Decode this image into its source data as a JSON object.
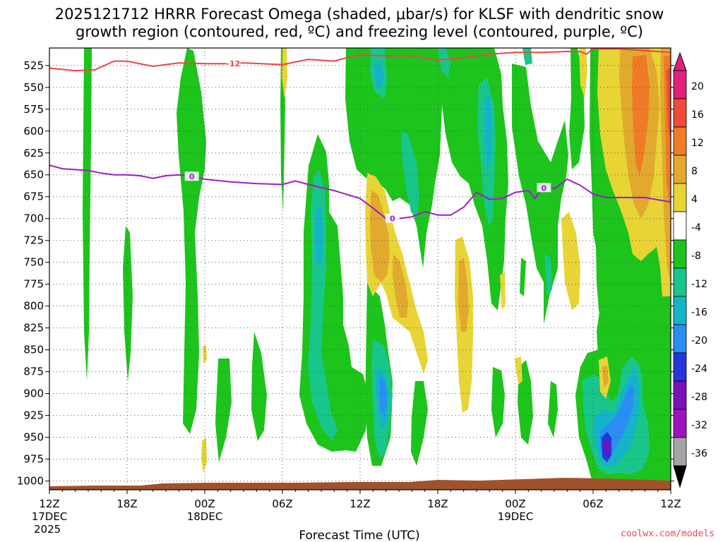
{
  "title": {
    "line1": "2025121712 HRRR Forecast Omega (shaded, μbar/s) for KLSF with dendritic snow",
    "line2": "growth region (contoured, red, ºC) and freezing level (contoured, purple, ºC)"
  },
  "credit": "coolwx.com/models",
  "chart_data": {
    "type": "heatmap",
    "title": "2025121712 HRRR Forecast Omega (shaded, μbar/s) for KLSF with dendritic snow growth region (contoured, red, ºC) and freezing level (contoured, purple, ºC)",
    "xlabel": "Forecast Time (UTC)",
    "ylabel": "",
    "x_range_hours": [
      0,
      48
    ],
    "y_range_hpa": [
      1010,
      505
    ],
    "y_reversed": true,
    "grid": true,
    "x_ticks": [
      {
        "hour": 0,
        "label": "12Z",
        "sub": "17DEC",
        "sub2": "2025"
      },
      {
        "hour": 6,
        "label": "18Z",
        "sub": "",
        "sub2": ""
      },
      {
        "hour": 12,
        "label": "00Z",
        "sub": "18DEC",
        "sub2": ""
      },
      {
        "hour": 18,
        "label": "06Z",
        "sub": "",
        "sub2": ""
      },
      {
        "hour": 24,
        "label": "12Z",
        "sub": "",
        "sub2": ""
      },
      {
        "hour": 30,
        "label": "18Z",
        "sub": "",
        "sub2": ""
      },
      {
        "hour": 36,
        "label": "00Z",
        "sub": "19DEC",
        "sub2": ""
      },
      {
        "hour": 42,
        "label": "06Z",
        "sub": "",
        "sub2": ""
      },
      {
        "hour": 48,
        "label": "12Z",
        "sub": "",
        "sub2": ""
      }
    ],
    "y_ticks": [
      525,
      550,
      575,
      600,
      625,
      650,
      675,
      700,
      725,
      750,
      775,
      800,
      825,
      850,
      875,
      900,
      925,
      950,
      975,
      1000
    ],
    "colorbar": {
      "labels": [
        "20",
        "16",
        "12",
        "8",
        "4",
        "-4",
        "-8",
        "-12",
        "-16",
        "-20",
        "-24",
        "-28",
        "-32",
        "-36"
      ],
      "colors": [
        "#e0207a",
        "#ef4a3a",
        "#f07b26",
        "#e2a92f",
        "#e8d435",
        "#ffffff",
        "#1cc41c",
        "#19c68a",
        "#14b4c8",
        "#2a8ef2",
        "#2636dc",
        "#7a10b8",
        "#a012c0",
        "#a5a5a5"
      ],
      "end_colors": {
        "top": "#e0207a",
        "bottom": "#000000"
      }
    },
    "contours": [
      {
        "name": "-12",
        "color": "#ef4444",
        "label": "-12",
        "points": [
          [
            0,
            528
          ],
          [
            2,
            531
          ],
          [
            3.5,
            530
          ],
          [
            5,
            520
          ],
          [
            6,
            520
          ],
          [
            8,
            526
          ],
          [
            10,
            522
          ],
          [
            12,
            523
          ],
          [
            14,
            523
          ],
          [
            15,
            522
          ],
          [
            18,
            524
          ],
          [
            20,
            518
          ],
          [
            22,
            520
          ],
          [
            23,
            516
          ],
          [
            24,
            513
          ],
          [
            26,
            514
          ],
          [
            28,
            514
          ],
          [
            30,
            519
          ],
          [
            32,
            516
          ],
          [
            33,
            514
          ],
          [
            34,
            512
          ],
          [
            36,
            510
          ],
          [
            38,
            510
          ],
          [
            40,
            509
          ],
          [
            41,
            509
          ],
          [
            41.5,
            512
          ],
          [
            42,
            506
          ],
          [
            44,
            506
          ],
          [
            46,
            508
          ],
          [
            48,
            510
          ]
        ],
        "label_hour": 14.2
      },
      {
        "name": "0",
        "color": "#9b1fc8",
        "label": "0",
        "points": [
          [
            0,
            639
          ],
          [
            1,
            643
          ],
          [
            3,
            645
          ],
          [
            4,
            648
          ],
          [
            5,
            650
          ],
          [
            6,
            650
          ],
          [
            7,
            651
          ],
          [
            8,
            654
          ],
          [
            9,
            651
          ],
          [
            10,
            650
          ],
          [
            11,
            652
          ],
          [
            12,
            655
          ],
          [
            14,
            658
          ],
          [
            16,
            660
          ],
          [
            18,
            661
          ],
          [
            19,
            657
          ],
          [
            20,
            661
          ],
          [
            22,
            668
          ],
          [
            24,
            677
          ],
          [
            25,
            688
          ],
          [
            26,
            700
          ],
          [
            27,
            700
          ],
          [
            28,
            698
          ],
          [
            29,
            692
          ],
          [
            30,
            696
          ],
          [
            31,
            696
          ],
          [
            32,
            687
          ],
          [
            33,
            670
          ],
          [
            34,
            678
          ],
          [
            35,
            677
          ],
          [
            36,
            670
          ],
          [
            37,
            668
          ],
          [
            37.5,
            677
          ],
          [
            38,
            667
          ],
          [
            38.5,
            662
          ],
          [
            39,
            666
          ],
          [
            40,
            655
          ],
          [
            41,
            662
          ],
          [
            42,
            672
          ],
          [
            43,
            676
          ],
          [
            45,
            676
          ],
          [
            46,
            676
          ],
          [
            48,
            681
          ]
        ],
        "label_hour": 11,
        "label_hour2": 26.5,
        "label_hour3": 38.2
      }
    ]
  }
}
